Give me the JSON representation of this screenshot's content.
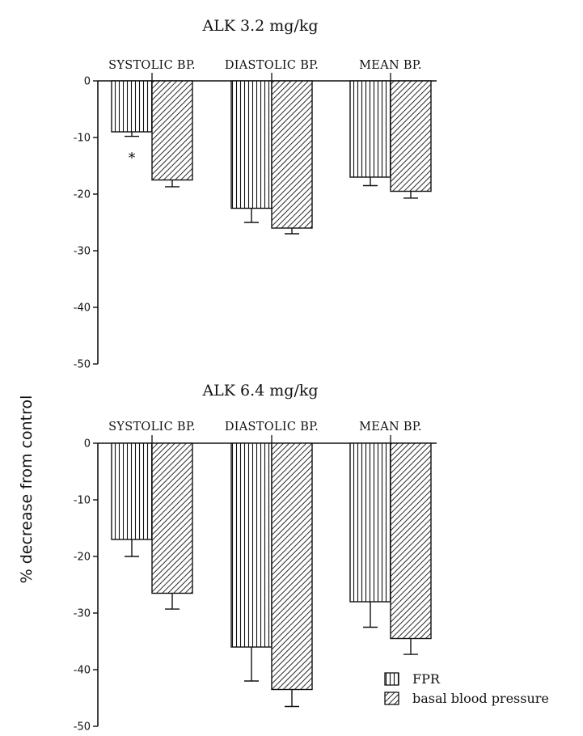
{
  "ylabel": "% decrease from control",
  "legend": {
    "position": "bottom-right"
  },
  "chart_data": [
    {
      "type": "bar",
      "title": "ALK 3.2 mg/kg",
      "categories": [
        "SYSTOLIC BP.",
        "DIASTOLIC BP.",
        "MEAN BP."
      ],
      "ylim": [
        -50,
        0
      ],
      "yticks": [
        0,
        -10,
        -20,
        -30,
        -40,
        -50
      ],
      "series": [
        {
          "name": "FPR",
          "values": [
            -9.0,
            -22.5,
            -17.0
          ],
          "errors": [
            0.8,
            2.5,
            1.5
          ]
        },
        {
          "name": "basal blood pressure",
          "values": [
            -17.5,
            -26.0,
            -19.5
          ],
          "errors": [
            1.2,
            1.0,
            1.2
          ]
        }
      ],
      "annotations": [
        {
          "text": "*",
          "category": "SYSTOLIC BP.",
          "series": "FPR",
          "value": -13
        }
      ]
    },
    {
      "type": "bar",
      "title": "ALK 6.4 mg/kg",
      "categories": [
        "SYSTOLIC BP.",
        "DIASTOLIC BP.",
        "MEAN BP."
      ],
      "ylim": [
        -50,
        0
      ],
      "yticks": [
        0,
        -10,
        -20,
        -30,
        -40,
        -50
      ],
      "series": [
        {
          "name": "FPR",
          "values": [
            -17.0,
            -36.0,
            -28.0
          ],
          "errors": [
            3.0,
            6.0,
            4.5
          ]
        },
        {
          "name": "basal blood pressure",
          "values": [
            -26.5,
            -43.5,
            -34.5
          ],
          "errors": [
            2.8,
            3.0,
            2.8
          ]
        }
      ],
      "annotations": []
    }
  ]
}
